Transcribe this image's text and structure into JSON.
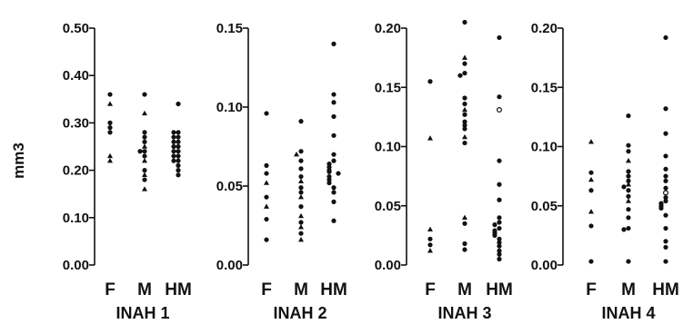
{
  "ylabel": "mm3",
  "chart_data": [
    {
      "type": "scatter",
      "title": "INAH 1",
      "ylim": [
        0,
        0.5
      ],
      "yticks": [
        "0.00",
        "0.10",
        "0.20",
        "0.30",
        "0.40",
        "0.50"
      ],
      "categories": [
        "F",
        "M",
        "HM"
      ],
      "groups": [
        {
          "category": "F",
          "points": [
            {
              "v": 0.36,
              "m": "dot"
            },
            {
              "v": 0.34,
              "m": "tri"
            },
            {
              "v": 0.3,
              "m": "dot"
            },
            {
              "v": 0.29,
              "m": "dot"
            },
            {
              "v": 0.28,
              "m": "dot"
            },
            {
              "v": 0.23,
              "m": "tri"
            },
            {
              "v": 0.22,
              "m": "tri"
            }
          ]
        },
        {
          "category": "M",
          "points": [
            {
              "v": 0.36,
              "m": "dot"
            },
            {
              "v": 0.32,
              "m": "tri"
            },
            {
              "v": 0.28,
              "m": "dot"
            },
            {
              "v": 0.27,
              "m": "dot"
            },
            {
              "v": 0.26,
              "m": "dot"
            },
            {
              "v": 0.25,
              "m": "tri"
            },
            {
              "v": 0.24,
              "m": "dot"
            },
            {
              "v": 0.24,
              "m": "dot"
            },
            {
              "v": 0.23,
              "m": "dot"
            },
            {
              "v": 0.22,
              "m": "tri"
            },
            {
              "v": 0.2,
              "m": "dot"
            },
            {
              "v": 0.19,
              "m": "tri"
            },
            {
              "v": 0.18,
              "m": "dot"
            },
            {
              "v": 0.16,
              "m": "tri"
            }
          ]
        },
        {
          "category": "HM",
          "points": [
            {
              "v": 0.34,
              "m": "dot"
            },
            {
              "v": 0.28,
              "m": "dot"
            },
            {
              "v": 0.28,
              "m": "dot"
            },
            {
              "v": 0.27,
              "m": "dot"
            },
            {
              "v": 0.27,
              "m": "dot"
            },
            {
              "v": 0.26,
              "m": "dot"
            },
            {
              "v": 0.26,
              "m": "dot"
            },
            {
              "v": 0.25,
              "m": "dot"
            },
            {
              "v": 0.25,
              "m": "dot"
            },
            {
              "v": 0.24,
              "m": "dot"
            },
            {
              "v": 0.24,
              "m": "dot"
            },
            {
              "v": 0.23,
              "m": "dot"
            },
            {
              "v": 0.23,
              "m": "dot"
            },
            {
              "v": 0.22,
              "m": "dot"
            },
            {
              "v": 0.22,
              "m": "dot"
            },
            {
              "v": 0.21,
              "m": "dot"
            },
            {
              "v": 0.2,
              "m": "dot"
            },
            {
              "v": 0.19,
              "m": "dot"
            }
          ]
        }
      ]
    },
    {
      "type": "scatter",
      "title": "INAH 2",
      "ylim": [
        0,
        0.15
      ],
      "yticks": [
        "0.00",
        "0.05",
        "0.10",
        "0.15"
      ],
      "categories": [
        "F",
        "M",
        "HM"
      ],
      "groups": [
        {
          "category": "F",
          "points": [
            {
              "v": 0.096,
              "m": "dot"
            },
            {
              "v": 0.063,
              "m": "dot"
            },
            {
              "v": 0.058,
              "m": "dot"
            },
            {
              "v": 0.052,
              "m": "tri"
            },
            {
              "v": 0.043,
              "m": "dot"
            },
            {
              "v": 0.037,
              "m": "tri"
            },
            {
              "v": 0.029,
              "m": "dot"
            },
            {
              "v": 0.016,
              "m": "dot"
            }
          ]
        },
        {
          "category": "M",
          "points": [
            {
              "v": 0.091,
              "m": "dot"
            },
            {
              "v": 0.072,
              "m": "dot"
            },
            {
              "v": 0.07,
              "m": "tri"
            },
            {
              "v": 0.066,
              "m": "dot"
            },
            {
              "v": 0.061,
              "m": "dot"
            },
            {
              "v": 0.056,
              "m": "dot"
            },
            {
              "v": 0.053,
              "m": "tri"
            },
            {
              "v": 0.049,
              "m": "dot"
            },
            {
              "v": 0.046,
              "m": "dot"
            },
            {
              "v": 0.043,
              "m": "tri"
            },
            {
              "v": 0.037,
              "m": "dot"
            },
            {
              "v": 0.031,
              "m": "tri"
            },
            {
              "v": 0.027,
              "m": "dot"
            },
            {
              "v": 0.024,
              "m": "tri"
            },
            {
              "v": 0.02,
              "m": "dot"
            },
            {
              "v": 0.016,
              "m": "tri"
            }
          ]
        },
        {
          "category": "HM",
          "points": [
            {
              "v": 0.14,
              "m": "dot"
            },
            {
              "v": 0.108,
              "m": "dot"
            },
            {
              "v": 0.103,
              "m": "dot"
            },
            {
              "v": 0.094,
              "m": "dot"
            },
            {
              "v": 0.082,
              "m": "dot"
            },
            {
              "v": 0.07,
              "m": "dot"
            },
            {
              "v": 0.066,
              "m": "dot"
            },
            {
              "v": 0.064,
              "m": "dot"
            },
            {
              "v": 0.062,
              "m": "dot"
            },
            {
              "v": 0.06,
              "m": "dot"
            },
            {
              "v": 0.059,
              "m": "dot"
            },
            {
              "v": 0.058,
              "m": "dot"
            },
            {
              "v": 0.056,
              "m": "dot"
            },
            {
              "v": 0.054,
              "m": "dot"
            },
            {
              "v": 0.052,
              "m": "dot"
            },
            {
              "v": 0.049,
              "m": "dot"
            },
            {
              "v": 0.046,
              "m": "dot"
            },
            {
              "v": 0.04,
              "m": "dot"
            },
            {
              "v": 0.028,
              "m": "dot"
            }
          ]
        }
      ]
    },
    {
      "type": "scatter",
      "title": "INAH 3",
      "ylim": [
        0,
        0.2
      ],
      "yticks": [
        "0.00",
        "0.05",
        "0.10",
        "0.15",
        "0.20"
      ],
      "categories": [
        "F",
        "M",
        "HM"
      ],
      "groups": [
        {
          "category": "F",
          "points": [
            {
              "v": 0.155,
              "m": "dot"
            },
            {
              "v": 0.107,
              "m": "tri"
            },
            {
              "v": 0.03,
              "m": "tri"
            },
            {
              "v": 0.022,
              "m": "dot"
            },
            {
              "v": 0.017,
              "m": "dot"
            },
            {
              "v": 0.012,
              "m": "tri"
            }
          ]
        },
        {
          "category": "M",
          "points": [
            {
              "v": 0.205,
              "m": "dot"
            },
            {
              "v": 0.175,
              "m": "tri"
            },
            {
              "v": 0.17,
              "m": "dot"
            },
            {
              "v": 0.162,
              "m": "dot"
            },
            {
              "v": 0.16,
              "m": "dot"
            },
            {
              "v": 0.141,
              "m": "dot"
            },
            {
              "v": 0.136,
              "m": "dot"
            },
            {
              "v": 0.131,
              "m": "tri"
            },
            {
              "v": 0.127,
              "m": "dot"
            },
            {
              "v": 0.121,
              "m": "dot"
            },
            {
              "v": 0.118,
              "m": "dot"
            },
            {
              "v": 0.115,
              "m": "dot"
            },
            {
              "v": 0.108,
              "m": "tri"
            },
            {
              "v": 0.103,
              "m": "dot"
            },
            {
              "v": 0.04,
              "m": "tri"
            },
            {
              "v": 0.035,
              "m": "dot"
            },
            {
              "v": 0.018,
              "m": "dot"
            },
            {
              "v": 0.013,
              "m": "dot"
            }
          ]
        },
        {
          "category": "HM",
          "points": [
            {
              "v": 0.192,
              "m": "dot"
            },
            {
              "v": 0.142,
              "m": "dot"
            },
            {
              "v": 0.131,
              "m": "open"
            },
            {
              "v": 0.088,
              "m": "dot"
            },
            {
              "v": 0.068,
              "m": "dot"
            },
            {
              "v": 0.055,
              "m": "dot"
            },
            {
              "v": 0.04,
              "m": "dot"
            },
            {
              "v": 0.036,
              "m": "dot"
            },
            {
              "v": 0.034,
              "m": "dot"
            },
            {
              "v": 0.031,
              "m": "dot"
            },
            {
              "v": 0.029,
              "m": "dot"
            },
            {
              "v": 0.027,
              "m": "dot"
            },
            {
              "v": 0.025,
              "m": "dot"
            },
            {
              "v": 0.022,
              "m": "dot"
            },
            {
              "v": 0.019,
              "m": "dot"
            },
            {
              "v": 0.016,
              "m": "dot"
            },
            {
              "v": 0.012,
              "m": "dot"
            },
            {
              "v": 0.009,
              "m": "dot"
            },
            {
              "v": 0.005,
              "m": "dot"
            }
          ]
        }
      ]
    },
    {
      "type": "scatter",
      "title": "INAH 4",
      "ylim": [
        0,
        0.2
      ],
      "yticks": [
        "0.00",
        "0.05",
        "0.10",
        "0.15",
        "0.20"
      ],
      "categories": [
        "F",
        "M",
        "HM"
      ],
      "groups": [
        {
          "category": "F",
          "points": [
            {
              "v": 0.104,
              "m": "tri"
            },
            {
              "v": 0.078,
              "m": "dot"
            },
            {
              "v": 0.072,
              "m": "tri"
            },
            {
              "v": 0.063,
              "m": "dot"
            },
            {
              "v": 0.045,
              "m": "tri"
            },
            {
              "v": 0.033,
              "m": "dot"
            },
            {
              "v": 0.003,
              "m": "dot"
            }
          ]
        },
        {
          "category": "M",
          "points": [
            {
              "v": 0.126,
              "m": "dot"
            },
            {
              "v": 0.101,
              "m": "dot"
            },
            {
              "v": 0.096,
              "m": "dot"
            },
            {
              "v": 0.088,
              "m": "tri"
            },
            {
              "v": 0.079,
              "m": "dot"
            },
            {
              "v": 0.075,
              "m": "dot"
            },
            {
              "v": 0.071,
              "m": "dot"
            },
            {
              "v": 0.068,
              "m": "tri"
            },
            {
              "v": 0.066,
              "m": "dot"
            },
            {
              "v": 0.063,
              "m": "dot"
            },
            {
              "v": 0.058,
              "m": "dot"
            },
            {
              "v": 0.054,
              "m": "tri"
            },
            {
              "v": 0.047,
              "m": "dot"
            },
            {
              "v": 0.04,
              "m": "dot"
            },
            {
              "v": 0.031,
              "m": "dot"
            },
            {
              "v": 0.03,
              "m": "dot"
            },
            {
              "v": 0.003,
              "m": "dot"
            }
          ]
        },
        {
          "category": "HM",
          "points": [
            {
              "v": 0.192,
              "m": "dot"
            },
            {
              "v": 0.132,
              "m": "dot"
            },
            {
              "v": 0.111,
              "m": "dot"
            },
            {
              "v": 0.092,
              "m": "dot"
            },
            {
              "v": 0.081,
              "m": "dot"
            },
            {
              "v": 0.075,
              "m": "dot"
            },
            {
              "v": 0.071,
              "m": "dot"
            },
            {
              "v": 0.065,
              "m": "dot"
            },
            {
              "v": 0.061,
              "m": "open"
            },
            {
              "v": 0.057,
              "m": "dot"
            },
            {
              "v": 0.054,
              "m": "dot"
            },
            {
              "v": 0.052,
              "m": "dot"
            },
            {
              "v": 0.05,
              "m": "dot"
            },
            {
              "v": 0.048,
              "m": "dot"
            },
            {
              "v": 0.042,
              "m": "dot"
            },
            {
              "v": 0.031,
              "m": "dot"
            },
            {
              "v": 0.02,
              "m": "dot"
            },
            {
              "v": 0.015,
              "m": "dot"
            },
            {
              "v": 0.003,
              "m": "dot"
            }
          ]
        }
      ]
    }
  ]
}
